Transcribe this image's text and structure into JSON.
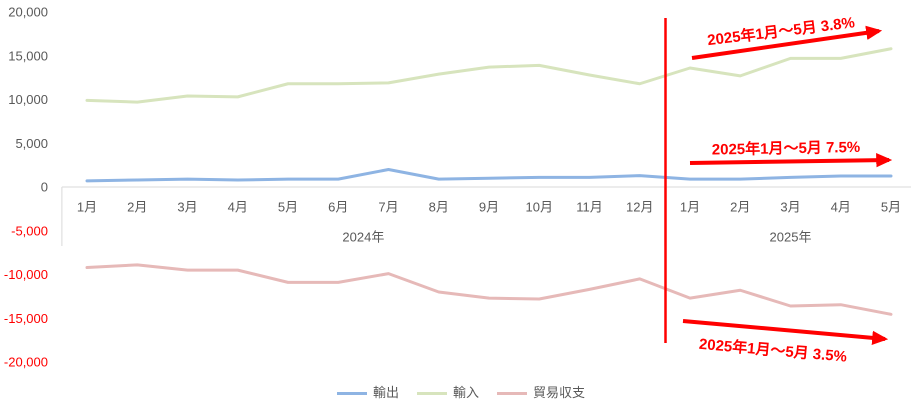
{
  "chart_data": {
    "type": "line",
    "category_groups": [
      {
        "label": "2024年",
        "categories": [
          "1月",
          "2月",
          "3月",
          "4月",
          "5月",
          "6月",
          "7月",
          "8月",
          "9月",
          "10月",
          "11月",
          "12月"
        ]
      },
      {
        "label": "2025年",
        "categories": [
          "1月",
          "2月",
          "3月",
          "4月",
          "5月"
        ]
      }
    ],
    "series": [
      {
        "name": "輸出",
        "color": "#8EB4E3",
        "values": [
          700,
          800,
          900,
          800,
          900,
          900,
          2000,
          900,
          1000,
          1100,
          1100,
          1300,
          900,
          900,
          1100,
          1250,
          1250
        ]
      },
      {
        "name": "輸入",
        "color": "#D7E4BD",
        "values": [
          9900,
          9700,
          10400,
          10300,
          11800,
          11800,
          11900,
          12900,
          13700,
          13900,
          12800,
          11800,
          13600,
          12700,
          14700,
          14700,
          15800
        ]
      },
      {
        "name": "貿易収支",
        "color": "#E6B9B8",
        "values": [
          -9200,
          -8900,
          -9500,
          -9500,
          -10900,
          -10900,
          -9900,
          -12000,
          -12700,
          -12800,
          -11700,
          -10500,
          -12700,
          -11800,
          -13600,
          -13450,
          -14550
        ]
      }
    ],
    "ylim": [
      -20000,
      20000
    ],
    "yticks": [
      {
        "value": 20000,
        "label": "20,000"
      },
      {
        "value": 15000,
        "label": "15,000"
      },
      {
        "value": 10000,
        "label": "10,000"
      },
      {
        "value": 5000,
        "label": "5,000"
      },
      {
        "value": 0,
        "label": "0"
      },
      {
        "value": -5000,
        "label": "-5,000"
      },
      {
        "value": -10000,
        "label": "-10,000"
      },
      {
        "value": -15000,
        "label": "-15,000"
      },
      {
        "value": -20000,
        "label": "-20,000"
      }
    ],
    "grid": false,
    "legend": "bottom",
    "annotations": [
      {
        "text": "2025年1月～5月 3.8%"
      },
      {
        "text": "2025年1月〜5月 7.5%"
      },
      {
        "text": "2025年1月～5月 3.5%"
      }
    ],
    "colors": {
      "tick_text": "#595959",
      "negative_tick_text": "#FF0000",
      "annotation": "#FF0000"
    }
  }
}
